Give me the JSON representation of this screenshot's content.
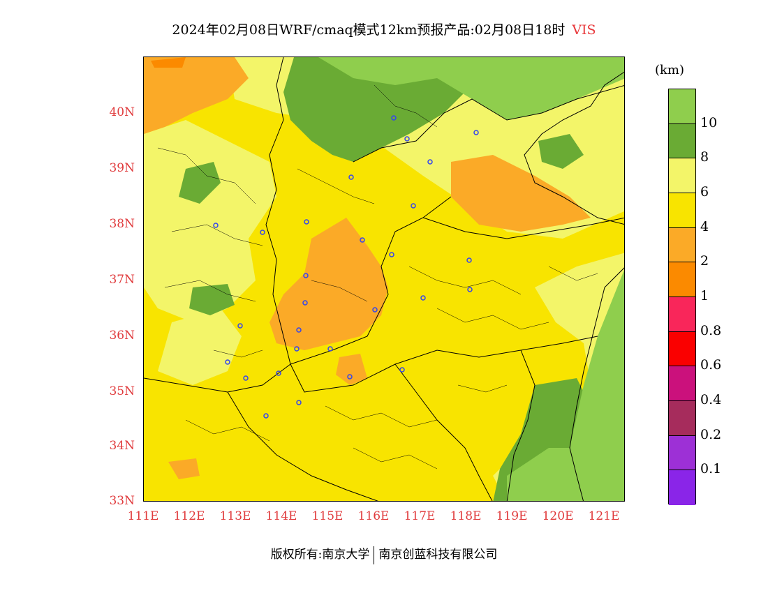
{
  "title": {
    "main": "2024年02月08日WRF/cmaq模式12km预报产品:02月08日18时",
    "variable": "VIS",
    "variable_color": "#e8373a"
  },
  "map": {
    "latitude_labels": [
      "40N",
      "39N",
      "38N",
      "37N",
      "36N",
      "35N",
      "34N",
      "33N"
    ],
    "longitude_labels": [
      "111E",
      "112E",
      "113E",
      "114E",
      "115E",
      "116E",
      "117E",
      "118E",
      "119E",
      "120E",
      "121E"
    ],
    "label_color": "#e03a3c",
    "station_marker_color": "#3344ee"
  },
  "legend": {
    "unit": "(km)",
    "bins": [
      {
        "label": "10",
        "color": "#8fce4d"
      },
      {
        "label": "8",
        "color": "#6aab34"
      },
      {
        "label": "6",
        "color": "#f3f569"
      },
      {
        "label": "4",
        "color": "#f8e400"
      },
      {
        "label": "2",
        "color": "#fbaa27"
      },
      {
        "label": "1",
        "color": "#fb8a00"
      },
      {
        "label": "0.8",
        "color": "#f9265a"
      },
      {
        "label": "0.6",
        "color": "#fa0000"
      },
      {
        "label": "0.4",
        "color": "#cb117c"
      },
      {
        "label": "0.2",
        "color": "#a62c5c"
      },
      {
        "label": "0.1",
        "color": "#9d30d6"
      },
      {
        "label": "",
        "color": "#8a25e8"
      }
    ]
  },
  "footer": {
    "left": "版权所有:南京大学",
    "right": "南京创蓝科技有限公司"
  }
}
